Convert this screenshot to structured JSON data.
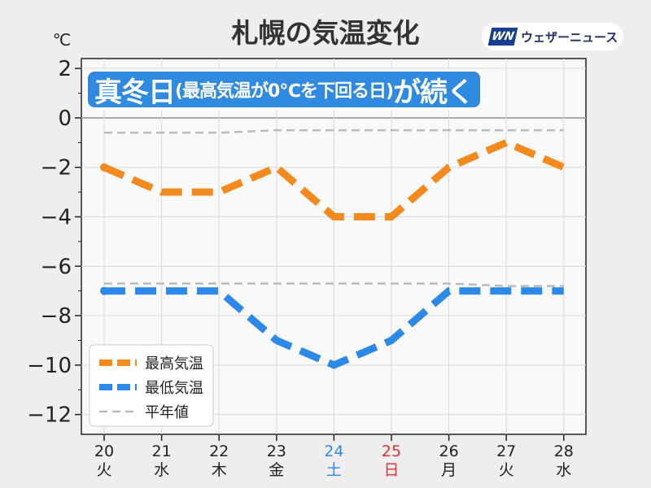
{
  "chart_data": {
    "type": "line",
    "title": "札幌の気温変化",
    "unit_label": "℃",
    "banner": {
      "prefix": "真冬日",
      "middle": "(最高気温が0℃を下回る日)",
      "suffix": "が続く"
    },
    "source_logo": {
      "mark": "WN",
      "text": "ウェザーニュース"
    },
    "x": [
      {
        "day": "20",
        "weekday": "火"
      },
      {
        "day": "21",
        "weekday": "水"
      },
      {
        "day": "22",
        "weekday": "木"
      },
      {
        "day": "23",
        "weekday": "金"
      },
      {
        "day": "24",
        "weekday": "土"
      },
      {
        "day": "25",
        "weekday": "日"
      },
      {
        "day": "26",
        "weekday": "月"
      },
      {
        "day": "27",
        "weekday": "火"
      },
      {
        "day": "28",
        "weekday": "水"
      }
    ],
    "ylim": [
      -12.8,
      2.4
    ],
    "yticks": [
      2,
      0,
      -2,
      -4,
      -6,
      -8,
      -10,
      -12
    ],
    "ytick_labels": [
      "2",
      "0",
      "−2",
      "−4",
      "−6",
      "−8",
      "−10",
      "−12"
    ],
    "grid": true,
    "legend_position": "bottom-left",
    "series": [
      {
        "name": "最高気温",
        "color": "#f28a1e",
        "style": "dashed-thick",
        "values": [
          -2,
          -3,
          -3,
          -2,
          -4,
          -4,
          -2,
          -1,
          -2
        ]
      },
      {
        "name": "最低気温",
        "color": "#2c89e8",
        "style": "dashed-thick",
        "values": [
          -7,
          -7,
          -7,
          -9,
          -10,
          -9,
          -7,
          -7,
          -7
        ]
      },
      {
        "name": "平年値",
        "color": "#bbbbbb",
        "style": "dashed-thin",
        "values": [
          -0.6,
          -0.6,
          -0.6,
          -0.5,
          -0.5,
          -0.5,
          -0.5,
          -0.5,
          -0.5
        ]
      },
      {
        "name": "",
        "color": "#bbbbbb",
        "style": "dashed-thin",
        "values": [
          -6.7,
          -6.7,
          -6.7,
          -6.7,
          -6.7,
          -6.7,
          -6.7,
          -6.8,
          -6.8
        ]
      }
    ],
    "colors": {
      "saturday": "#2c89e8",
      "sunday": "#e03030",
      "weekday": "#222222",
      "zero_line": "#aaaaaa",
      "grid": "#d9d9d9",
      "plot_bg": "#faf9f9"
    }
  }
}
